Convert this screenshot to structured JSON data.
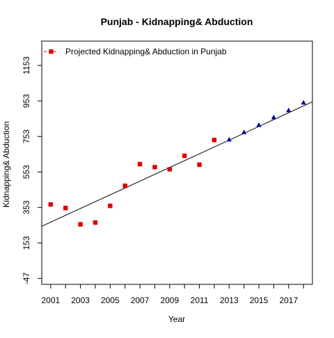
{
  "chart_data": {
    "type": "scatter",
    "title": "Punjab  -  Kidnapping& Abduction",
    "xlabel": "Year",
    "ylabel": "Kidnapping& Abduction",
    "xlim": [
      2000.4,
      2018.6
    ],
    "ylim": [
      -80,
      1290
    ],
    "x_ticks": [
      2001,
      2002,
      2003,
      2004,
      2005,
      2006,
      2007,
      2008,
      2009,
      2010,
      2011,
      2012,
      2013,
      2014,
      2015,
      2016,
      2017,
      2018
    ],
    "x_tick_labels": [
      {
        "x": 2001,
        "label": "2001"
      },
      {
        "x": 2003,
        "label": "2003"
      },
      {
        "x": 2005,
        "label": "2005"
      },
      {
        "x": 2007,
        "label": "2007"
      },
      {
        "x": 2009,
        "label": "2009"
      },
      {
        "x": 2011,
        "label": "2011"
      },
      {
        "x": 2013,
        "label": "2013"
      },
      {
        "x": 2015,
        "label": "2015"
      },
      {
        "x": 2017,
        "label": "2017"
      }
    ],
    "y_ticks": [
      {
        "value": -47,
        "label": "-47"
      },
      {
        "value": 153,
        "label": "153"
      },
      {
        "value": 353,
        "label": "353"
      },
      {
        "value": 553,
        "label": "553"
      },
      {
        "value": 753,
        "label": "753"
      },
      {
        "value": 953,
        "label": "953"
      },
      {
        "value": 1153,
        "label": "1153"
      }
    ],
    "legend": {
      "label": "Projected  Kidnapping& Abduction  in  Punjab",
      "position": "top-left"
    },
    "series": [
      {
        "marker": "square",
        "color": "#dd0000",
        "x": [
          2001,
          2002,
          2003,
          2004,
          2005,
          2006,
          2007,
          2008,
          2009,
          2010,
          2011,
          2012
        ],
        "y": [
          370,
          350,
          258,
          268,
          362,
          475,
          597,
          580,
          568,
          644,
          594,
          733
        ]
      },
      {
        "marker": "triangle",
        "color": "#0000aa",
        "x": [
          2013,
          2014,
          2015,
          2016,
          2017,
          2018
        ],
        "y": [
          735,
          776,
          817,
          860,
          900,
          943
        ]
      }
    ],
    "trend_line": {
      "color": "#000000",
      "x": [
        2000.4,
        2018.6
      ],
      "y": [
        247,
        948
      ]
    }
  }
}
